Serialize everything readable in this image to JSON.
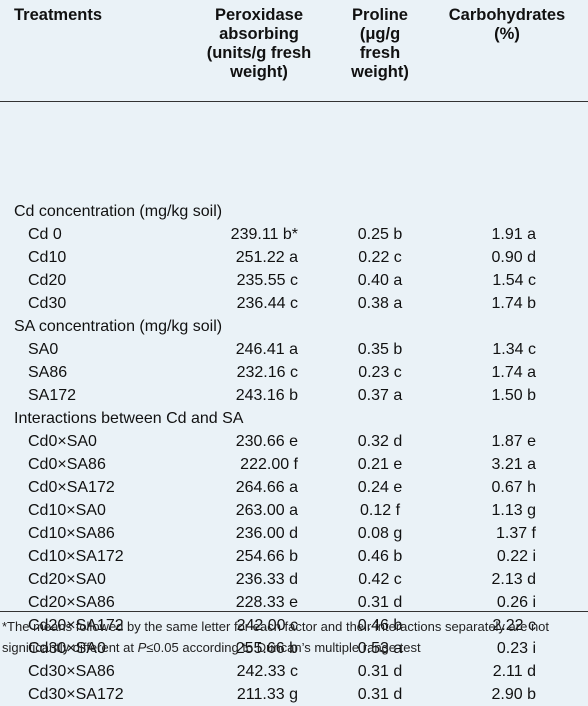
{
  "headers": {
    "treatments": "Treatments",
    "peroxidase": [
      "Peroxidase",
      "absorbing",
      "(units/g fresh",
      "weight)"
    ],
    "proline": [
      "Proline",
      "(μg/g",
      "fresh",
      "weight)"
    ],
    "carbohydrates": [
      "Carbohydrates",
      "(%)"
    ]
  },
  "sections": [
    {
      "title": "Cd concentration (mg/kg soil)",
      "rows": [
        [
          "Cd 0",
          "239.11 b*",
          "0.25 b",
          "1.91 a"
        ],
        [
          "Cd10",
          "251.22 a",
          "0.22 c",
          "0.90 d"
        ],
        [
          "Cd20",
          "235.55 c",
          "0.40 a",
          "1.54 c"
        ],
        [
          "Cd30",
          "236.44 c",
          "0.38 a",
          "1.74 b"
        ]
      ]
    },
    {
      "title": "SA concentration (mg/kg soil)",
      "rows": [
        [
          "SA0",
          "246.41 a",
          "0.35 b",
          "1.34 c"
        ],
        [
          "SA86",
          "232.16 c",
          "0.23 c",
          "1.74 a"
        ],
        [
          "SA172",
          "243.16 b",
          "0.37 a",
          "1.50 b"
        ]
      ]
    },
    {
      "title": "Interactions between Cd and SA",
      "rows": [
        [
          "Cd0×SA0",
          "230.66 e",
          "0.32 d",
          "1.87 e"
        ],
        [
          "Cd0×SA86",
          "222.00 f",
          "0.21 e",
          "3.21 a"
        ],
        [
          "Cd0×SA172",
          "264.66 a",
          "0.24 e",
          "0.67 h"
        ],
        [
          "Cd10×SA0",
          "263.00 a",
          "0.12 f",
          "1.13 g"
        ],
        [
          "Cd10×SA86",
          "236.00 d",
          "0.08 g",
          "1.37 f"
        ],
        [
          "Cd10×SA172",
          "254.66 b",
          "0.46 b",
          "0.22 i"
        ],
        [
          "Cd20×SA0",
          "236.33 d",
          "0.42 c",
          "2.13 d"
        ],
        [
          "Cd20×SA86",
          "228.33 e",
          "0.31 d",
          "0.26 i"
        ],
        [
          "Cd20×SA172",
          "242.00 c",
          "0.46 b",
          "2.22 c"
        ],
        [
          "Cd30×SA0",
          "255.66 b",
          "0.53 a",
          "0.23 i"
        ],
        [
          "Cd30×SA86",
          "242.33 c",
          "0.31 d",
          "2.11 d"
        ],
        [
          "Cd30×SA172",
          "211.33 g",
          "0.31 d",
          "2.90 b"
        ]
      ]
    }
  ],
  "footnote": {
    "text_a": "*The means followed by the same letter for each factor and their interactions separately are not significantly different at ",
    "text_p": "P",
    "text_b": "≤0.05 according to Duncan’s multiple range test"
  }
}
